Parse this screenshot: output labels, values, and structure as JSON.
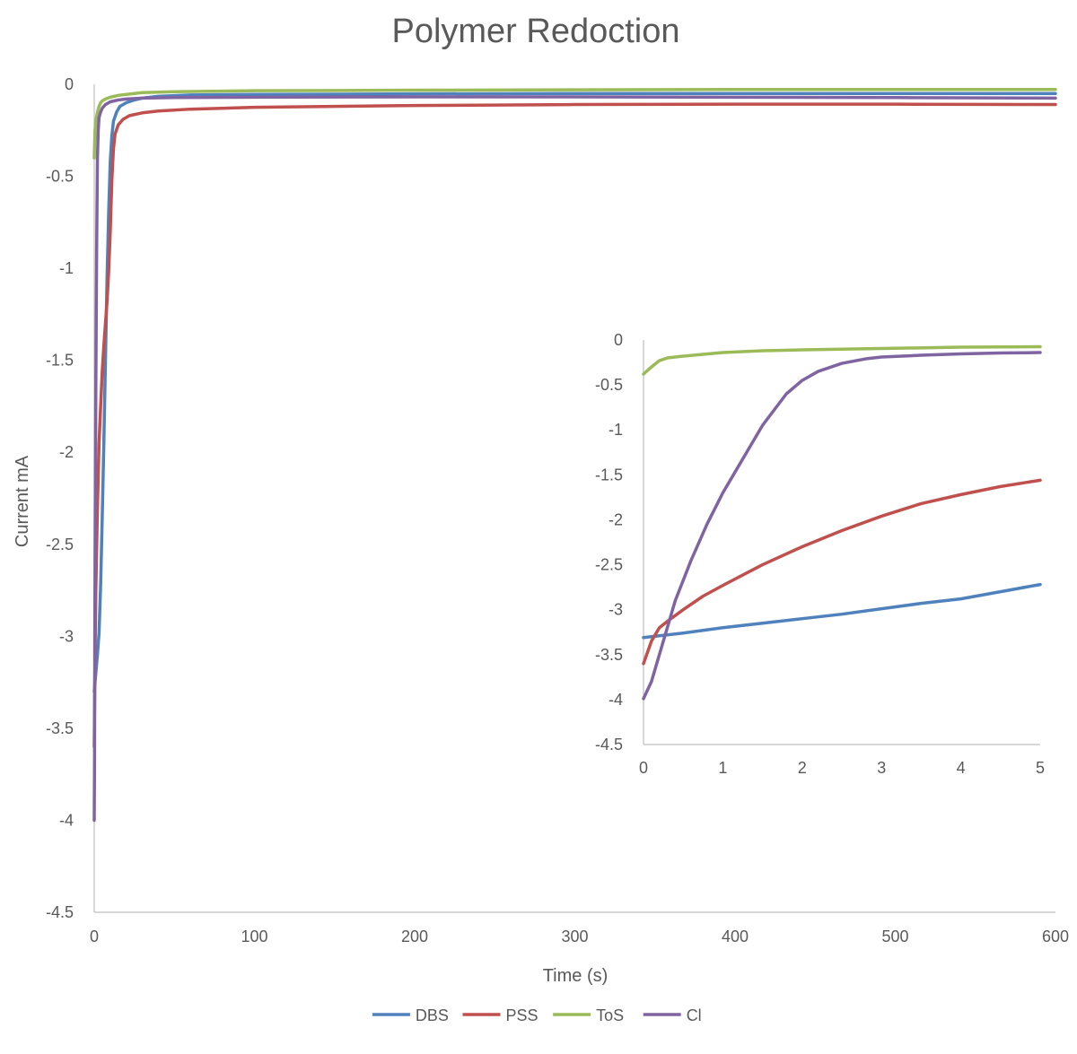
{
  "chart_data": [
    {
      "id": "main",
      "type": "line",
      "title": "Polymer Redoction",
      "xlabel": "Time (s)",
      "ylabel": "Current mA",
      "xlim": [
        0,
        600
      ],
      "ylim": [
        -4.5,
        0
      ],
      "x_ticks": [
        0,
        100,
        200,
        300,
        400,
        500,
        600
      ],
      "x_tick_labels": [
        "0",
        "100",
        "200",
        "300",
        "400",
        "500",
        "600"
      ],
      "y_ticks": [
        0,
        -0.5,
        -1,
        -1.5,
        -2,
        -2.5,
        -3,
        -3.5,
        -4,
        -4.5
      ],
      "y_tick_labels": [
        "0",
        "-0.5",
        "-1",
        "-1.5",
        "-2",
        "-2.5",
        "-3",
        "-3.5",
        "-4",
        "-4.5"
      ],
      "grid": false,
      "legend_position": "bottom",
      "series": [
        {
          "name": "DBS",
          "color": "#4F81BD",
          "x": [
            0,
            1,
            2,
            3,
            4,
            5,
            6,
            7,
            8,
            9,
            10,
            11,
            12,
            14,
            16,
            20,
            25,
            30,
            40,
            60,
            100,
            200,
            300,
            400,
            500,
            600
          ],
          "y": [
            -3.3,
            -3.2,
            -3.1,
            -2.98,
            -2.72,
            -2.35,
            -1.95,
            -1.5,
            -1.05,
            -0.7,
            -0.42,
            -0.28,
            -0.2,
            -0.15,
            -0.12,
            -0.1,
            -0.085,
            -0.075,
            -0.065,
            -0.058,
            -0.055,
            -0.052,
            -0.05,
            -0.05,
            -0.05,
            -0.05
          ]
        },
        {
          "name": "PSS",
          "color": "#C0504D",
          "x": [
            0,
            0.5,
            1,
            2,
            3,
            4,
            5,
            6,
            7,
            8,
            9,
            10,
            11,
            12,
            13,
            15,
            18,
            22,
            30,
            40,
            60,
            100,
            200,
            300,
            400,
            500,
            600
          ],
          "y": [
            -3.6,
            -3.1,
            -2.75,
            -2.3,
            -1.95,
            -1.75,
            -1.56,
            -1.42,
            -1.3,
            -1.18,
            -1.02,
            -0.8,
            -0.52,
            -0.35,
            -0.27,
            -0.22,
            -0.19,
            -0.17,
            -0.155,
            -0.145,
            -0.135,
            -0.125,
            -0.115,
            -0.11,
            -0.108,
            -0.108,
            -0.11
          ]
        },
        {
          "name": "ToS",
          "color": "#9BBB59",
          "x": [
            0,
            0.5,
            1,
            2,
            3,
            4,
            5,
            7,
            10,
            15,
            20,
            30,
            50,
            100,
            200,
            300,
            400,
            500,
            600
          ],
          "y": [
            -0.4,
            -0.25,
            -0.2,
            -0.15,
            -0.12,
            -0.1,
            -0.09,
            -0.08,
            -0.07,
            -0.06,
            -0.055,
            -0.045,
            -0.04,
            -0.035,
            -0.032,
            -0.03,
            -0.028,
            -0.028,
            -0.028
          ]
        },
        {
          "name": "Cl",
          "color": "#8064A2",
          "x": [
            0,
            0.2,
            0.35,
            0.5,
            1,
            1.5,
            2,
            2.5,
            3,
            4,
            5,
            7,
            10,
            15,
            20,
            30,
            50,
            100,
            200,
            300,
            400,
            500,
            600
          ],
          "y": [
            -4.0,
            -3.65,
            -3.0,
            -2.6,
            -1.65,
            -0.9,
            -0.4,
            -0.25,
            -0.18,
            -0.15,
            -0.13,
            -0.11,
            -0.095,
            -0.085,
            -0.08,
            -0.075,
            -0.072,
            -0.07,
            -0.068,
            -0.068,
            -0.07,
            -0.072,
            -0.075
          ]
        }
      ]
    },
    {
      "id": "inset",
      "type": "line",
      "title": "",
      "xlabel": "",
      "ylabel": "",
      "xlim": [
        0,
        5
      ],
      "ylim": [
        -4.5,
        0
      ],
      "x_ticks": [
        0,
        1,
        2,
        3,
        4,
        5
      ],
      "x_tick_labels": [
        "0",
        "1",
        "2",
        "3",
        "4",
        "5"
      ],
      "y_ticks": [
        0,
        -0.5,
        -1,
        -1.5,
        -2,
        -2.5,
        -3,
        -3.5,
        -4,
        -4.5
      ],
      "y_tick_labels": [
        "0",
        "-0.5",
        "-1",
        "-1.5",
        "-2",
        "-2.5",
        "-3",
        "-3.5",
        "-4",
        "-4.5"
      ],
      "grid": false,
      "series": [
        {
          "name": "DBS",
          "color": "#4F81BD",
          "x": [
            0,
            0.5,
            1,
            1.5,
            2,
            2.5,
            3,
            3.5,
            4,
            4.5,
            5
          ],
          "y": [
            -3.31,
            -3.26,
            -3.2,
            -3.15,
            -3.1,
            -3.05,
            -2.99,
            -2.93,
            -2.88,
            -2.8,
            -2.72
          ]
        },
        {
          "name": "PSS",
          "color": "#C0504D",
          "x": [
            0,
            0.1,
            0.2,
            0.3,
            0.5,
            0.75,
            1,
            1.5,
            2,
            2.5,
            3,
            3.5,
            4,
            4.5,
            5
          ],
          "y": [
            -3.6,
            -3.35,
            -3.2,
            -3.13,
            -3.0,
            -2.85,
            -2.73,
            -2.5,
            -2.3,
            -2.12,
            -1.96,
            -1.82,
            -1.72,
            -1.63,
            -1.56
          ]
        },
        {
          "name": "ToS",
          "color": "#9BBB59",
          "x": [
            0,
            0.1,
            0.2,
            0.3,
            0.5,
            0.75,
            1,
            1.5,
            2,
            3,
            4,
            5
          ],
          "y": [
            -0.38,
            -0.3,
            -0.23,
            -0.2,
            -0.18,
            -0.16,
            -0.14,
            -0.12,
            -0.11,
            -0.095,
            -0.08,
            -0.075
          ]
        },
        {
          "name": "Cl",
          "color": "#8064A2",
          "x": [
            0,
            0.1,
            0.2,
            0.3,
            0.4,
            0.6,
            0.8,
            1.0,
            1.2,
            1.5,
            1.8,
            2.0,
            2.2,
            2.5,
            2.8,
            3.0,
            3.5,
            4.0,
            4.5,
            5.0
          ],
          "y": [
            -3.99,
            -3.8,
            -3.5,
            -3.2,
            -2.9,
            -2.45,
            -2.05,
            -1.7,
            -1.4,
            -0.95,
            -0.6,
            -0.45,
            -0.35,
            -0.26,
            -0.21,
            -0.19,
            -0.17,
            -0.155,
            -0.145,
            -0.14
          ]
        }
      ]
    }
  ]
}
